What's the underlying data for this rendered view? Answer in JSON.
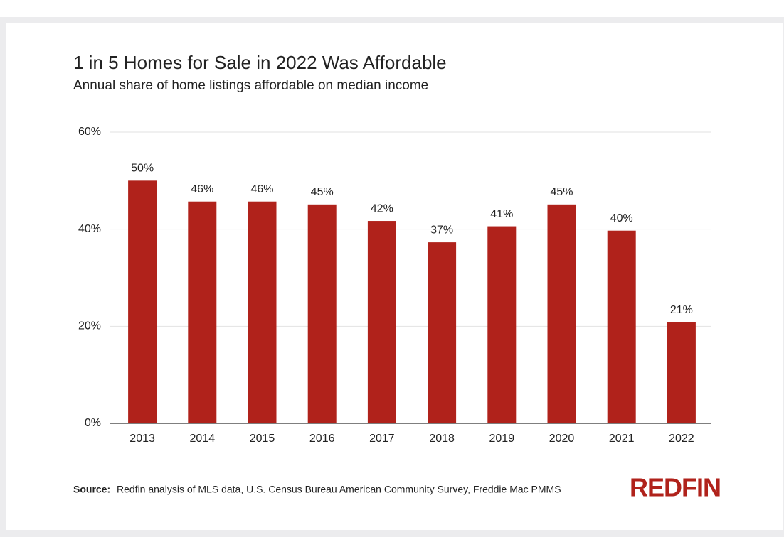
{
  "chart_data": {
    "type": "bar",
    "title": "1 in 5 Homes for Sale in 2022 Was Affordable",
    "subtitle": "Annual share of home listings affordable on median income",
    "categories": [
      "2013",
      "2014",
      "2015",
      "2016",
      "2017",
      "2018",
      "2019",
      "2020",
      "2021",
      "2022"
    ],
    "values": [
      50,
      45.7,
      45.7,
      45.1,
      41.7,
      37.3,
      40.6,
      45.1,
      39.7,
      20.8
    ],
    "value_labels": [
      "50%",
      "46%",
      "46%",
      "45%",
      "42%",
      "37%",
      "41%",
      "45%",
      "40%",
      "21%"
    ],
    "color": "#b0221b",
    "ylim": [
      0,
      60
    ],
    "yticks": [
      {
        "value": 0,
        "label": "0%"
      },
      {
        "value": 20,
        "label": "20%"
      },
      {
        "value": 40,
        "label": "40%"
      },
      {
        "value": 60,
        "label": "60%"
      }
    ],
    "grid": true,
    "source_label": "Source:",
    "source": "Redfin analysis of MLS data, U.S. Census Bureau American Community Survey, Freddie Mac PMMS",
    "logo": "REDFIN"
  }
}
